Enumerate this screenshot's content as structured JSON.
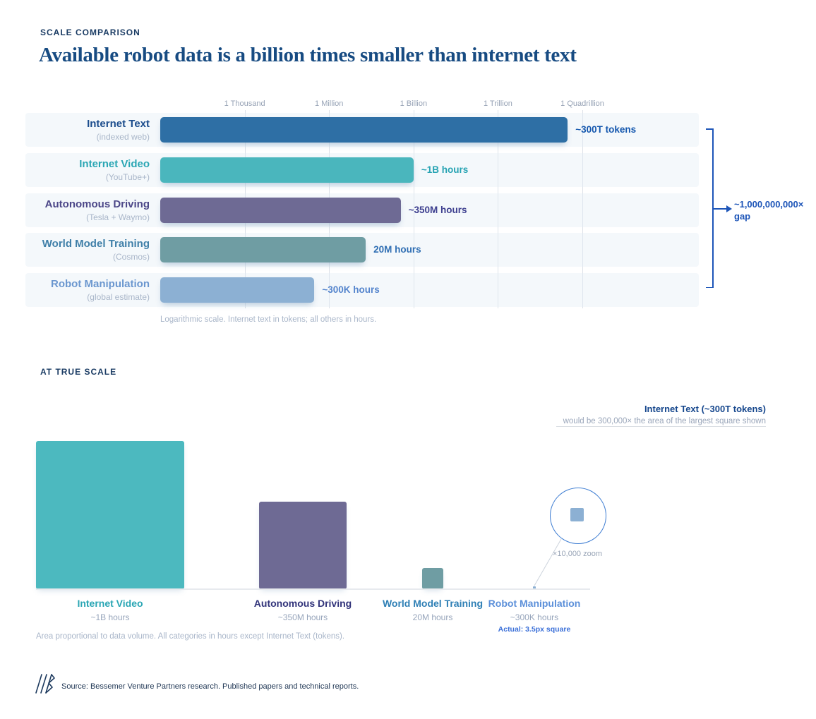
{
  "header": {
    "eyebrow": "SCALE COMPARISON",
    "title": "Available robot data is a billion times smaller than internet text"
  },
  "chart_data": [
    {
      "type": "bar",
      "orientation": "horizontal",
      "scale": "logarithmic",
      "title": "Available robot data is a billion times smaller than internet text",
      "section_label": "SCALE COMPARISON",
      "xlim": [
        1,
        1000000000000000
      ],
      "axis_ticks": [
        {
          "label": "1 Thousand",
          "value": 1000
        },
        {
          "label": "1 Million",
          "value": 1000000
        },
        {
          "label": "1 Billion",
          "value": 1000000000
        },
        {
          "label": "1 Trillion",
          "value": 1000000000000
        },
        {
          "label": "1 Quadrillion",
          "value": 1000000000000000
        }
      ],
      "rows": [
        {
          "category": "Internet Text",
          "sub": "(indexed web)",
          "value": 300000000000000,
          "unit": "tokens",
          "value_label": "~300T tokens",
          "bar_color": "#2e6fa5",
          "label_color": "#1b4c8c",
          "value_color": "#1457ae"
        },
        {
          "category": "Internet Video",
          "sub": "(YouTube+)",
          "value": 1000000000,
          "unit": "hours",
          "value_label": "~1B hours",
          "bar_color": "#4ab6bd",
          "label_color": "#2aa6b4",
          "value_color": "#27a3b3"
        },
        {
          "category": "Autonomous Driving",
          "sub": "(Tesla + Waymo)",
          "value": 350000000,
          "unit": "hours",
          "value_label": "~350M hours",
          "bar_color": "#6e6a94",
          "label_color": "#4c4788",
          "value_color": "#3d3f8f"
        },
        {
          "category": "World Model Training",
          "sub": "(Cosmos)",
          "value": 20000000,
          "unit": "hours",
          "value_label": "20M hours",
          "bar_color": "#6f9da3",
          "label_color": "#3f7fa8",
          "value_color": "#2f6eb3"
        },
        {
          "category": "Robot Manipulation",
          "sub": "(global estimate)",
          "value": 300000,
          "unit": "hours",
          "value_label": "~300K hours",
          "bar_color": "#8cb0d3",
          "label_color": "#6b97cf",
          "value_color": "#5585cd"
        }
      ],
      "annotation": {
        "line1": "~1,000,000,000×",
        "line2": "gap"
      },
      "footnote": "Logarithmic scale. Internet text in tokens; all others in hours."
    },
    {
      "type": "area-comparison",
      "title": "AT TRUE SCALE",
      "note_title": "Internet Text (~300T tokens)",
      "note_sub": "would be 300,000× the area of the largest square shown",
      "reference_hours": 1000000000,
      "reference_size_px": 210,
      "items": [
        {
          "category": "Internet Video",
          "value_label": "~1B hours",
          "hours": 1000000000,
          "color": "#4cb9bf",
          "label_color": "#2aa6b4"
        },
        {
          "category": "Autonomous Driving",
          "value_label": "~350M hours",
          "hours": 350000000,
          "color": "#6e6a94",
          "label_color": "#31337a"
        },
        {
          "category": "World Model Training",
          "value_label": "20M hours",
          "hours": 20000000,
          "color": "#6f9da3",
          "label_color": "#2e7fb5"
        },
        {
          "category": "Robot Manipulation",
          "value_label": "~300K hours",
          "hours": 300000,
          "color": "#8cb0d3",
          "label_color": "#5b8fd9",
          "actual_label": "Actual: 3.5px square"
        }
      ],
      "zoom_label": "×10,000 zoom",
      "footnote": "Area proportional to data volume. All categories in hours except Internet Text (tokens)."
    }
  ],
  "footer": {
    "source": "Source: Bessemer Venture Partners research. Published papers and technical reports."
  },
  "colors": {
    "accent_blue": "#1d55b8",
    "grid": "#dde2e9",
    "title_navy": "#174b82"
  }
}
